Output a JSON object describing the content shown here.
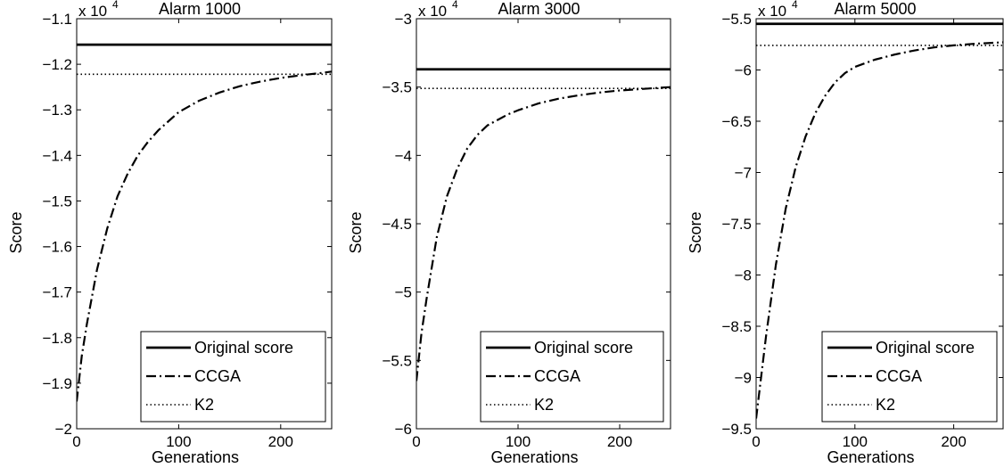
{
  "chart_data": [
    {
      "type": "line",
      "title": "Alarm 1000",
      "xlabel": "Generations",
      "ylabel": "Score",
      "multiplier_label": "x 10",
      "multiplier_exponent": "4",
      "xlim": [
        0,
        250
      ],
      "ylim": [
        -2.0,
        -1.1
      ],
      "xticks": [
        0,
        100,
        200
      ],
      "xtick_labels": [
        "0",
        "100",
        "200"
      ],
      "yticks": [
        -2.0,
        -1.9,
        -1.8,
        -1.7,
        -1.6,
        -1.5,
        -1.4,
        -1.3,
        -1.2,
        -1.1
      ],
      "ytick_labels": [
        "−2",
        "−1.9",
        "−1.8",
        "−1.7",
        "−1.6",
        "−1.5",
        "−1.4",
        "−1.3",
        "−1.2",
        "−1.1"
      ],
      "grid": false,
      "legend_position": "bottom-right",
      "series": [
        {
          "name": "Original score",
          "style": "solid",
          "x": [
            0,
            250
          ],
          "y": [
            -1.157,
            -1.157
          ]
        },
        {
          "name": "CCGA",
          "style": "dashdot",
          "x": [
            0,
            5,
            10,
            20,
            30,
            40,
            50,
            60,
            70,
            80,
            90,
            100,
            120,
            140,
            160,
            180,
            200,
            220,
            240,
            250
          ],
          "y": [
            -1.94,
            -1.84,
            -1.77,
            -1.65,
            -1.56,
            -1.49,
            -1.44,
            -1.4,
            -1.37,
            -1.345,
            -1.325,
            -1.305,
            -1.28,
            -1.262,
            -1.248,
            -1.238,
            -1.23,
            -1.224,
            -1.219,
            -1.216
          ]
        },
        {
          "name": "K2",
          "style": "dotted",
          "x": [
            0,
            250
          ],
          "y": [
            -1.222,
            -1.222
          ]
        }
      ]
    },
    {
      "type": "line",
      "title": "Alarm 3000",
      "xlabel": "Generations",
      "ylabel": "Score",
      "multiplier_label": "x 10",
      "multiplier_exponent": "4",
      "xlim": [
        0,
        250
      ],
      "ylim": [
        -6.0,
        -3.0
      ],
      "xticks": [
        0,
        100,
        200
      ],
      "xtick_labels": [
        "0",
        "100",
        "200"
      ],
      "yticks": [
        -6.0,
        -5.5,
        -5.0,
        -4.5,
        -4.0,
        -3.5,
        -3.0
      ],
      "ytick_labels": [
        "−6",
        "−5.5",
        "−5",
        "−4.5",
        "−4",
        "−3.5",
        "−3"
      ],
      "grid": false,
      "legend_position": "bottom-right",
      "series": [
        {
          "name": "Original score",
          "style": "solid",
          "x": [
            0,
            250
          ],
          "y": [
            -3.37,
            -3.37
          ]
        },
        {
          "name": "CCGA",
          "style": "dashdot",
          "x": [
            0,
            5,
            10,
            20,
            30,
            40,
            50,
            60,
            70,
            80,
            90,
            100,
            120,
            140,
            160,
            180,
            200,
            220,
            240,
            250
          ],
          "y": [
            -5.65,
            -5.3,
            -5.05,
            -4.6,
            -4.3,
            -4.1,
            -3.95,
            -3.85,
            -3.78,
            -3.74,
            -3.7,
            -3.67,
            -3.62,
            -3.585,
            -3.56,
            -3.54,
            -3.525,
            -3.515,
            -3.505,
            -3.5
          ]
        },
        {
          "name": "K2",
          "style": "dotted",
          "x": [
            0,
            250
          ],
          "y": [
            -3.51,
            -3.51
          ]
        }
      ]
    },
    {
      "type": "line",
      "title": "Alarm 5000",
      "xlabel": "Generations",
      "ylabel": "Score",
      "multiplier_label": "x 10",
      "multiplier_exponent": "4",
      "xlim": [
        0,
        250
      ],
      "ylim": [
        -9.5,
        -5.5
      ],
      "xticks": [
        0,
        100,
        200
      ],
      "xtick_labels": [
        "0",
        "100",
        "200"
      ],
      "yticks": [
        -9.5,
        -9.0,
        -8.5,
        -8.0,
        -7.5,
        -7.0,
        -6.5,
        -6.0,
        -5.5
      ],
      "ytick_labels": [
        "−9.5",
        "−9",
        "−8.5",
        "−8",
        "−7.5",
        "−7",
        "−6.5",
        "−6",
        "−5.5"
      ],
      "grid": false,
      "legend_position": "bottom-right",
      "series": [
        {
          "name": "Original score",
          "style": "solid",
          "x": [
            0,
            250
          ],
          "y": [
            -5.55,
            -5.55
          ]
        },
        {
          "name": "CCGA",
          "style": "dashdot",
          "x": [
            0,
            5,
            10,
            20,
            30,
            40,
            50,
            60,
            70,
            80,
            90,
            100,
            120,
            140,
            160,
            180,
            200,
            220,
            240,
            250
          ],
          "y": [
            -9.4,
            -9.0,
            -8.6,
            -7.9,
            -7.35,
            -6.95,
            -6.65,
            -6.42,
            -6.25,
            -6.12,
            -6.03,
            -5.97,
            -5.9,
            -5.85,
            -5.81,
            -5.78,
            -5.76,
            -5.745,
            -5.735,
            -5.73
          ]
        },
        {
          "name": "K2",
          "style": "dotted",
          "x": [
            0,
            250
          ],
          "y": [
            -5.76,
            -5.76
          ]
        }
      ]
    }
  ]
}
